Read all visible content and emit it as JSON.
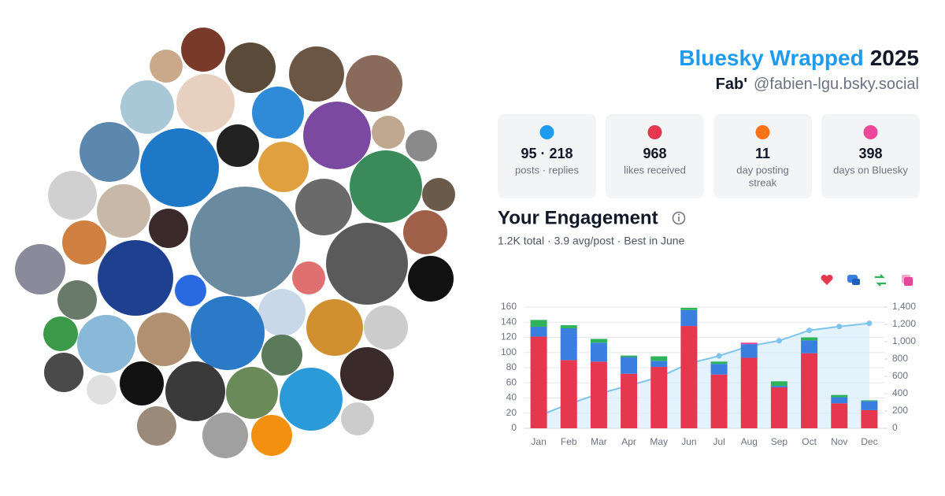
{
  "header": {
    "title": "Bluesky Wrapped",
    "year": "2025",
    "name": "Fab'",
    "handle": "@fabien-lgu.bsky.social"
  },
  "stats": [
    {
      "value": "95 · 218",
      "label": [
        "posts · replies"
      ]
    },
    {
      "value": "968",
      "label": [
        "likes received"
      ]
    },
    {
      "value": "11",
      "label": [
        "day posting",
        "streak"
      ]
    },
    {
      "value": "398",
      "label": [
        "days on Bluesky"
      ]
    }
  ],
  "engagement": {
    "title": "Your Engagement",
    "summary": "1.2K total · 3.9 avg/post · Best in June"
  },
  "chart_data": {
    "type": "bar",
    "stacked": true,
    "categories": [
      "Jan",
      "Feb",
      "Mar",
      "Apr",
      "May",
      "Jun",
      "Jul",
      "Aug",
      "Sep",
      "Oct",
      "Nov",
      "Dec"
    ],
    "series": [
      {
        "color": "#e5384f",
        "values": [
          121,
          90,
          88,
          72,
          81,
          135,
          71,
          93,
          54,
          99,
          33,
          24
        ]
      },
      {
        "color": "#3a7fe0",
        "values": [
          13,
          42,
          25,
          22,
          8,
          21,
          14,
          18,
          2,
          17,
          8,
          12
        ]
      },
      {
        "color": "#2fb35a",
        "values": [
          9,
          4,
          5,
          2,
          6,
          3,
          3,
          0,
          6,
          4,
          3,
          1
        ]
      },
      {
        "color": "#e8459a",
        "values": [
          0,
          0,
          0,
          0,
          0,
          0,
          0,
          2,
          0,
          0,
          0,
          0
        ]
      },
      {
        "type": "line",
        "axis": "y2",
        "color": "#7cc4ec",
        "area_color": "#d8edf9",
        "values": [
          144,
          280,
          398,
          494,
          589,
          748,
          836,
          949,
          1011,
          1131,
          1175,
          1212
        ]
      }
    ],
    "ylim": [
      0,
      160
    ],
    "yticks": [
      0,
      20,
      40,
      60,
      80,
      100,
      120,
      140,
      160
    ],
    "y2lim": [
      0,
      1400
    ],
    "y2ticks": [
      0,
      200,
      400,
      600,
      800,
      {
        "value": 1000,
        "label": "1,000"
      },
      {
        "value": 1200,
        "label": "1,200"
      },
      {
        "value": 1400,
        "label": "1,400"
      }
    ],
    "grid": true
  }
}
